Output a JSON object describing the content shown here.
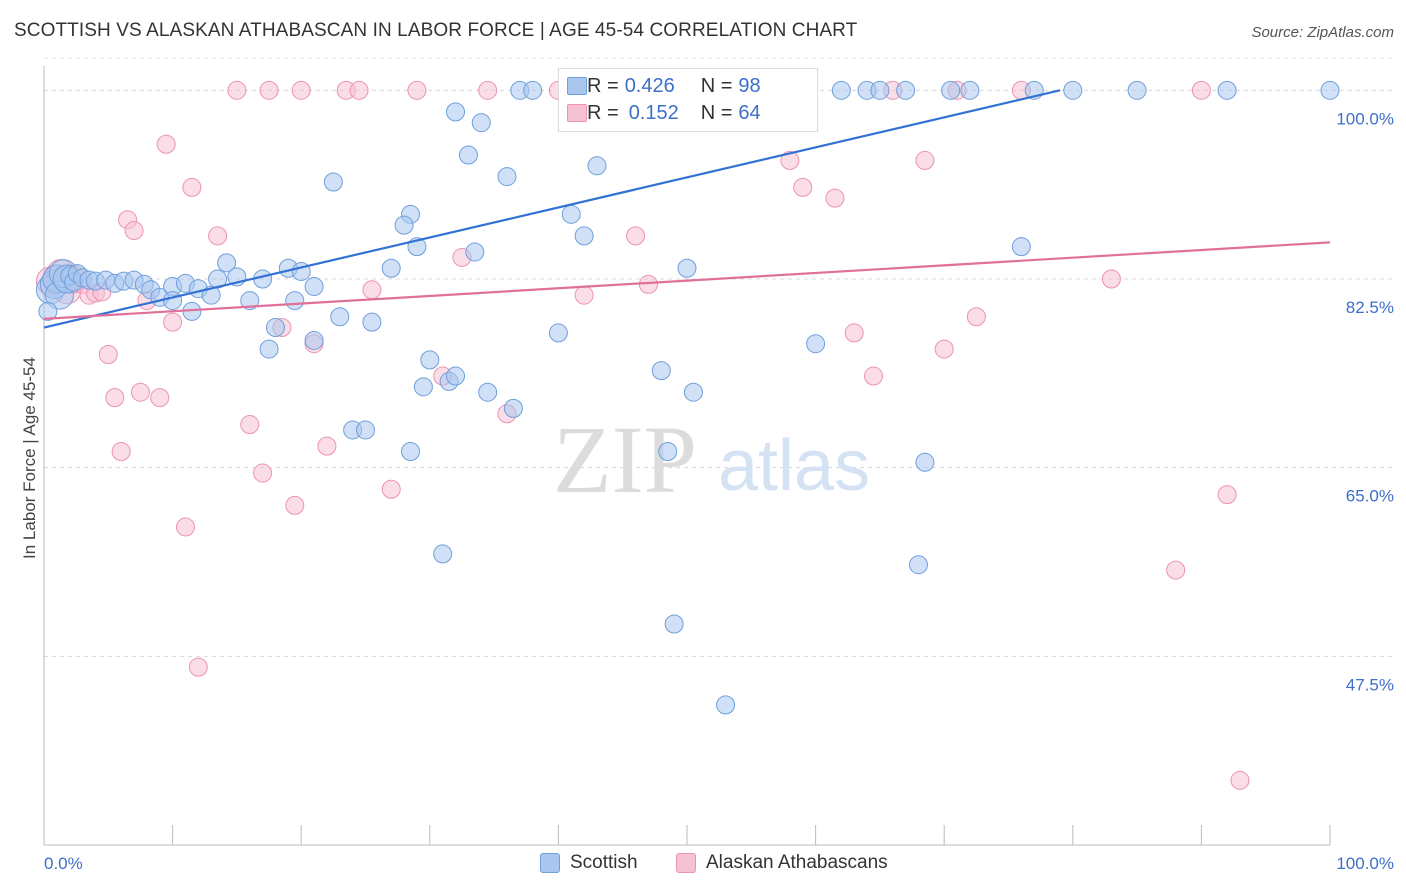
{
  "title": "SCOTTISH VS ALASKAN ATHABASCAN IN LABOR FORCE | AGE 45-54 CORRELATION CHART",
  "source": "Source: ZipAtlas.com",
  "watermark": {
    "zip": "ZIP",
    "atlas": "atlas"
  },
  "colors": {
    "scottish_fill": "#a9c6ef",
    "scottish_stroke": "#6f9fdc",
    "scottish_line": "#3272d4",
    "alaskan_fill": "#f6c1d3",
    "alaskan_stroke": "#ec93b1",
    "alaskan_line": "#e0709a",
    "tick_label": "#3d6fc9"
  },
  "legend_top": {
    "rows": [
      {
        "r_label": "R =",
        "r_value": "0.426",
        "n_label": "N =",
        "n_value": "98"
      },
      {
        "r_label": "R =",
        "r_value": "0.152",
        "n_label": "N =",
        "n_value": "64"
      }
    ]
  },
  "legend_bottom": {
    "scottish": "Scottish",
    "alaskan": "Alaskan Athabascans"
  },
  "chart_data": {
    "type": "scatter",
    "title": "SCOTTISH VS ALASKAN ATHABASCAN IN LABOR FORCE | AGE 45-54 CORRELATION CHART",
    "xlabel": "",
    "ylabel": "In Labor Force | Age 45-54",
    "xlim": [
      0,
      100
    ],
    "ylim": [
      30,
      103
    ],
    "x_tick_labels": [
      "0.0%",
      "100.0%"
    ],
    "y_ticks": [
      47.5,
      65.0,
      82.5,
      100.0
    ],
    "y_tick_labels": [
      "47.5%",
      "65.0%",
      "82.5%",
      "100.0%"
    ],
    "grid": "horizontal dashed",
    "legend_placement": "bottom",
    "series": [
      {
        "name": "Scottish",
        "R": 0.426,
        "N": 98,
        "trend": [
          [
            0,
            78.0
          ],
          [
            79,
            100.0
          ]
        ],
        "points": [
          [
            0.5,
            81.5
          ],
          [
            0.8,
            82.0
          ],
          [
            1.0,
            82.5
          ],
          [
            1.2,
            81.0
          ],
          [
            1.5,
            83.0
          ],
          [
            1.8,
            82.5
          ],
          [
            2.0,
            82.8
          ],
          [
            2.3,
            82.2
          ],
          [
            2.6,
            83.0
          ],
          [
            3.0,
            82.6
          ],
          [
            3.5,
            82.4
          ],
          [
            4.0,
            82.3
          ],
          [
            4.8,
            82.4
          ],
          [
            5.5,
            82.1
          ],
          [
            6.2,
            82.3
          ],
          [
            7.0,
            82.4
          ],
          [
            7.8,
            82.0
          ],
          [
            8.3,
            81.5
          ],
          [
            9.0,
            80.8
          ],
          [
            10.0,
            81.8
          ],
          [
            11.0,
            82.1
          ],
          [
            12.0,
            81.6
          ],
          [
            13.0,
            81.0
          ],
          [
            11.5,
            79.5
          ],
          [
            10.0,
            80.5
          ],
          [
            13.5,
            82.5
          ],
          [
            14.2,
            84.0
          ],
          [
            15.0,
            82.7
          ],
          [
            16.0,
            80.5
          ],
          [
            17.0,
            82.5
          ],
          [
            18.0,
            78.0
          ],
          [
            17.5,
            76.0
          ],
          [
            19.0,
            83.5
          ],
          [
            20.0,
            83.2
          ],
          [
            21.0,
            81.8
          ],
          [
            19.5,
            80.5
          ],
          [
            21.0,
            76.8
          ],
          [
            22.5,
            91.5
          ],
          [
            23.0,
            79.0
          ],
          [
            24.0,
            68.5
          ],
          [
            25.0,
            68.5
          ],
          [
            25.5,
            78.5
          ],
          [
            27.0,
            83.5
          ],
          [
            28.5,
            88.5
          ],
          [
            28.0,
            87.5
          ],
          [
            29.0,
            85.5
          ],
          [
            28.5,
            66.5
          ],
          [
            29.5,
            72.5
          ],
          [
            30.0,
            75.0
          ],
          [
            31.5,
            73.0
          ],
          [
            31.0,
            57.0
          ],
          [
            32.0,
            73.5
          ],
          [
            32.0,
            98.0
          ],
          [
            33.0,
            94.0
          ],
          [
            33.5,
            85.0
          ],
          [
            34.0,
            97.0
          ],
          [
            36.0,
            92.0
          ],
          [
            34.5,
            72.0
          ],
          [
            36.5,
            70.5
          ],
          [
            37.0,
            100.0
          ],
          [
            38.0,
            100.0
          ],
          [
            40.0,
            77.5
          ],
          [
            41.0,
            88.5
          ],
          [
            42.0,
            86.5
          ],
          [
            43.0,
            93.0
          ],
          [
            44.0,
            100.0
          ],
          [
            45.5,
            100.0
          ],
          [
            47.0,
            100.0
          ],
          [
            48.0,
            74.0
          ],
          [
            48.5,
            66.5
          ],
          [
            49.0,
            50.5
          ],
          [
            50.0,
            83.5
          ],
          [
            50.5,
            72.0
          ],
          [
            51.5,
            100.0
          ],
          [
            52.0,
            100.0
          ],
          [
            52.5,
            100.0
          ],
          [
            53.0,
            100.0
          ],
          [
            53.0,
            43.0
          ],
          [
            55.0,
            100.0
          ],
          [
            56.0,
            100.0
          ],
          [
            57.0,
            100.0
          ],
          [
            57.5,
            100.0
          ],
          [
            60.0,
            76.5
          ],
          [
            62.0,
            100.0
          ],
          [
            64.0,
            100.0
          ],
          [
            65.0,
            100.0
          ],
          [
            67.0,
            100.0
          ],
          [
            68.5,
            65.5
          ],
          [
            68.0,
            56.0
          ],
          [
            70.5,
            100.0
          ],
          [
            72.0,
            100.0
          ],
          [
            76.0,
            85.5
          ],
          [
            77.0,
            100.0
          ],
          [
            80.0,
            100.0
          ],
          [
            85.0,
            100.0
          ],
          [
            92.0,
            100.0
          ],
          [
            100.0,
            100.0
          ],
          [
            0.3,
            79.5
          ]
        ]
      },
      {
        "name": "Alaskan Athabascans",
        "R": 0.152,
        "N": 64,
        "trend": [
          [
            0,
            78.8
          ],
          [
            100,
            85.9
          ]
        ],
        "points": [
          [
            0.5,
            82.3
          ],
          [
            1.0,
            82.5
          ],
          [
            1.3,
            83.0
          ],
          [
            1.8,
            81.5
          ],
          [
            2.2,
            82.5
          ],
          [
            3.0,
            82.0
          ],
          [
            3.5,
            81.0
          ],
          [
            4.0,
            81.2
          ],
          [
            4.5,
            81.3
          ],
          [
            5.0,
            75.5
          ],
          [
            5.5,
            71.5
          ],
          [
            6.0,
            66.5
          ],
          [
            6.5,
            88.0
          ],
          [
            7.0,
            87.0
          ],
          [
            7.5,
            72.0
          ],
          [
            8.0,
            80.5
          ],
          [
            9.0,
            71.5
          ],
          [
            9.5,
            95.0
          ],
          [
            10.0,
            78.5
          ],
          [
            11.0,
            59.5
          ],
          [
            11.5,
            91.0
          ],
          [
            12.0,
            46.5
          ],
          [
            13.5,
            86.5
          ],
          [
            15.0,
            100.0
          ],
          [
            16.0,
            69.0
          ],
          [
            17.0,
            64.5
          ],
          [
            17.5,
            100.0
          ],
          [
            18.5,
            78.0
          ],
          [
            19.5,
            61.5
          ],
          [
            20.0,
            100.0
          ],
          [
            21.0,
            76.5
          ],
          [
            22.0,
            67.0
          ],
          [
            23.5,
            100.0
          ],
          [
            24.5,
            100.0
          ],
          [
            25.5,
            81.5
          ],
          [
            27.0,
            63.0
          ],
          [
            29.0,
            100.0
          ],
          [
            31.0,
            73.5
          ],
          [
            32.5,
            84.5
          ],
          [
            34.5,
            100.0
          ],
          [
            36.0,
            70.0
          ],
          [
            40.0,
            100.0
          ],
          [
            42.0,
            81.0
          ],
          [
            44.0,
            100.0
          ],
          [
            46.0,
            86.5
          ],
          [
            47.0,
            82.0
          ],
          [
            50.0,
            100.0
          ],
          [
            56.0,
            100.0
          ],
          [
            58.0,
            93.5
          ],
          [
            59.0,
            91.0
          ],
          [
            61.5,
            90.0
          ],
          [
            63.0,
            77.5
          ],
          [
            64.5,
            73.5
          ],
          [
            66.0,
            100.0
          ],
          [
            68.5,
            93.5
          ],
          [
            70.0,
            76.0
          ],
          [
            71.0,
            100.0
          ],
          [
            72.5,
            79.0
          ],
          [
            76.0,
            100.0
          ],
          [
            83.0,
            82.5
          ],
          [
            88.0,
            55.5
          ],
          [
            90.0,
            100.0
          ],
          [
            92.0,
            62.5
          ],
          [
            93.0,
            36.0
          ]
        ]
      }
    ]
  }
}
